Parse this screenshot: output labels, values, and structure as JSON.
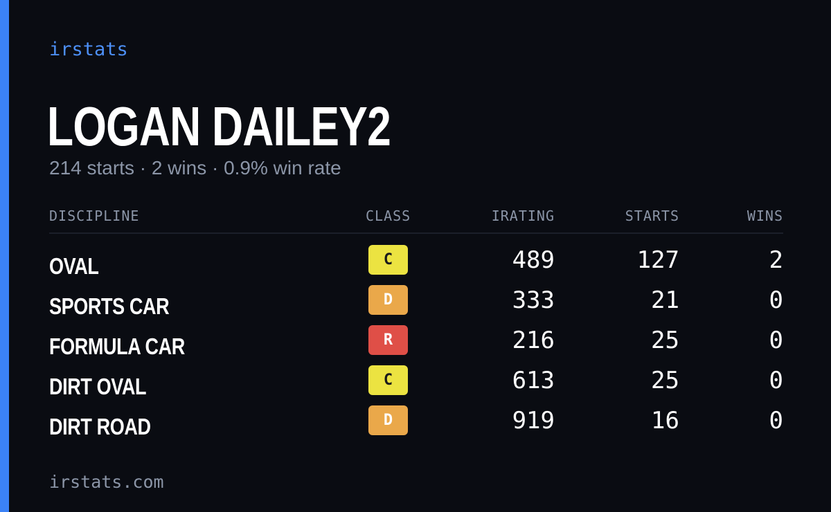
{
  "brand": "irstats",
  "player_name": "LOGAN DAILEY2",
  "summary": "214 starts · 2 wins · 0.9% win rate",
  "table": {
    "headers": {
      "discipline": "DISCIPLINE",
      "class": "CLASS",
      "irating": "IRATING",
      "starts": "STARTS",
      "wins": "WINS"
    },
    "rows": [
      {
        "discipline": "OVAL",
        "class": "C",
        "irating": "489",
        "starts": "127",
        "wins": "2"
      },
      {
        "discipline": "SPORTS CAR",
        "class": "D",
        "irating": "333",
        "starts": "21",
        "wins": "0"
      },
      {
        "discipline": "FORMULA CAR",
        "class": "R",
        "irating": "216",
        "starts": "25",
        "wins": "0"
      },
      {
        "discipline": "DIRT OVAL",
        "class": "C",
        "irating": "613",
        "starts": "25",
        "wins": "0"
      },
      {
        "discipline": "DIRT ROAD",
        "class": "D",
        "irating": "919",
        "starts": "16",
        "wins": "0"
      }
    ]
  },
  "class_colors": {
    "C": {
      "bg": "#ece341",
      "fg": "#1a1a1a"
    },
    "D": {
      "bg": "#eaa84a",
      "fg": "#ffffff"
    },
    "R": {
      "bg": "#df4f47",
      "fg": "#ffffff"
    }
  },
  "accent_color": "#3b82f6",
  "footer": "irstats.com"
}
